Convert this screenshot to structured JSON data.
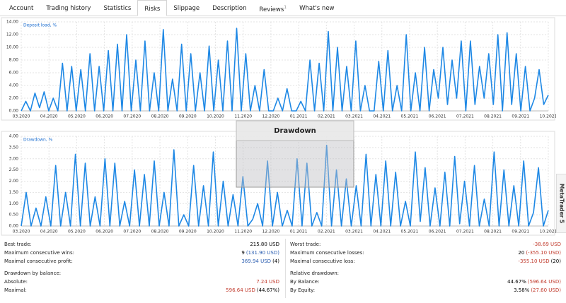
{
  "tabs": [
    "Account",
    "Trading history",
    "Statistics",
    "Risks",
    "Slippage",
    "Description",
    "Reviews",
    "What's new"
  ],
  "reviews_count": "1",
  "charts": [
    {
      "type": "line",
      "label": "Deposit load, %",
      "color": "#1e88e5",
      "ylim": [
        0,
        14
      ],
      "yticks": [
        {
          "value": 0,
          "label": "0.00"
        },
        {
          "value": 2,
          "label": "2.00"
        },
        {
          "value": 4,
          "label": "4.00"
        },
        {
          "value": 6,
          "label": "6.00"
        },
        {
          "value": 8,
          "label": "8.00"
        },
        {
          "value": 10,
          "label": "10.00"
        },
        {
          "value": 12,
          "label": "12.00"
        },
        {
          "value": 14,
          "label": "14.00"
        }
      ],
      "categories": [
        "03.2020",
        "04.2020",
        "05.2020",
        "06.2020",
        "07.2020",
        "08.2020",
        "09.2020",
        "10.2020",
        "11.2020",
        "12.2020",
        "01.2021",
        "02.2021",
        "03.2021",
        "04.2021",
        "05.2021",
        "06.2021",
        "07.2021",
        "08.2021",
        "09.2021",
        "10.2021"
      ],
      "grid": true,
      "values": [
        0,
        1.5,
        0,
        2.8,
        0.5,
        3,
        0,
        2,
        0,
        7.5,
        0,
        7,
        0,
        6.5,
        0,
        9,
        0,
        7,
        0,
        9.5,
        0,
        10.5,
        0,
        12,
        0,
        8,
        0,
        11,
        0,
        6,
        0,
        12.8,
        0,
        5,
        0,
        10.5,
        0,
        9,
        0,
        6,
        0,
        10.2,
        0,
        8,
        0,
        11,
        0,
        13,
        0,
        9,
        0,
        4,
        0,
        6.5,
        0,
        0,
        2,
        0,
        3.5,
        0,
        0,
        1.5,
        0,
        8,
        0,
        7.5,
        0,
        12.5,
        0,
        10,
        0,
        7,
        0,
        11,
        0,
        4,
        0,
        0,
        7.8,
        0,
        9.5,
        0,
        4,
        0,
        12,
        0,
        6,
        0,
        10,
        0,
        6.5,
        2,
        10,
        1,
        8,
        2,
        11,
        0,
        11,
        1,
        7,
        2,
        9,
        1,
        12,
        0,
        12.3,
        1,
        9,
        0,
        7,
        0,
        2,
        6.5,
        1,
        2.5
      ]
    },
    {
      "type": "line",
      "label": "Drawdown, %",
      "color": "#1e88e5",
      "ylim": [
        0,
        4
      ],
      "yticks": [
        {
          "value": 0,
          "label": "0.00"
        },
        {
          "value": 0.5,
          "label": "0.50"
        },
        {
          "value": 1,
          "label": "1.00"
        },
        {
          "value": 1.5,
          "label": "1.50"
        },
        {
          "value": 2,
          "label": "2.00"
        },
        {
          "value": 2.5,
          "label": "2.50"
        },
        {
          "value": 3,
          "label": "3.00"
        },
        {
          "value": 3.5,
          "label": "3.50"
        },
        {
          "value": 4,
          "label": "4.00"
        }
      ],
      "categories": [
        "03.2020",
        "04.2020",
        "05.2020",
        "06.2020",
        "07.2020",
        "08.2020",
        "09.2020",
        "10.2020",
        "11.2020",
        "12.2020",
        "01.2021",
        "02.2021",
        "03.2021",
        "04.2021",
        "05.2021",
        "06.2021",
        "07.2021",
        "08.2021",
        "09.2021",
        "10.2021"
      ],
      "grid": true,
      "values": [
        0,
        1.5,
        0,
        0.8,
        0,
        1.3,
        0,
        2.7,
        0,
        1.5,
        0,
        3.2,
        0,
        2.8,
        0,
        1.3,
        0,
        3.0,
        0,
        2.8,
        0,
        1.1,
        0,
        2.5,
        0,
        2.3,
        0,
        2.9,
        0,
        1.5,
        0,
        3.4,
        0,
        0.5,
        0,
        2.7,
        0,
        1.8,
        0,
        3.3,
        0,
        2.0,
        0,
        1.4,
        0,
        2.2,
        0,
        0.3,
        1.0,
        0,
        2.9,
        0,
        1.5,
        0,
        0.7,
        0,
        3.0,
        0,
        2.8,
        0,
        0.6,
        0,
        3.6,
        0,
        2.5,
        0,
        2.1,
        0,
        1.8,
        0,
        3.2,
        0,
        2.3,
        0,
        2.9,
        0,
        2.4,
        0,
        1.1,
        0,
        3.3,
        0.2,
        2.6,
        0,
        1.7,
        0,
        2.4,
        0,
        3.1,
        0.1,
        2.0,
        0,
        2.7,
        0,
        1.2,
        0,
        3.3,
        0,
        2.5,
        0,
        1.8,
        0,
        2.9,
        0,
        0.6,
        2.6,
        0,
        0.7
      ]
    }
  ],
  "overlay": {
    "title": "Drawdown"
  },
  "side_tab": "MetaTrader 5",
  "stats": {
    "left": [
      {
        "label": "Best trade:",
        "parts": [
          {
            "text": "215.80 USD",
            "color": "#000"
          }
        ]
      },
      {
        "label": "Maximum consecutive wins:",
        "parts": [
          {
            "text": "9",
            "color": "#000"
          },
          {
            "text": "(131.90 USD)",
            "color": "#2a5db0"
          }
        ]
      },
      {
        "label": "Maximal consecutive profit:",
        "parts": [
          {
            "text": "369.94 USD",
            "color": "#2a5db0"
          },
          {
            "text": "(4)",
            "color": "#000"
          }
        ]
      },
      {
        "heading": "Drawdown by balance:"
      },
      {
        "label": "Absolute:",
        "parts": [
          {
            "text": "7.24 USD",
            "color": "#c0392b"
          }
        ]
      },
      {
        "label": "Maximal:",
        "parts": [
          {
            "text": "596.64 USD",
            "color": "#c0392b"
          },
          {
            "text": "(44.67%)",
            "color": "#000"
          }
        ]
      }
    ],
    "right": [
      {
        "label": "Worst trade:",
        "parts": [
          {
            "text": "-38.69 USD",
            "color": "#c0392b"
          }
        ]
      },
      {
        "label": "Maximum consecutive losses:",
        "parts": [
          {
            "text": "20",
            "color": "#000"
          },
          {
            "text": "(-355.10 USD)",
            "color": "#c0392b"
          }
        ]
      },
      {
        "label": "Maximal consecutive loss:",
        "parts": [
          {
            "text": "-355.10 USD",
            "color": "#c0392b"
          },
          {
            "text": "(20)",
            "color": "#000"
          }
        ]
      },
      {
        "heading": "Relative drawdown:"
      },
      {
        "label": "By Balance:",
        "parts": [
          {
            "text": "44.67%",
            "color": "#000"
          },
          {
            "text": "(596.64 USD)",
            "color": "#c0392b"
          }
        ]
      },
      {
        "label": "By Equity:",
        "parts": [
          {
            "text": "3.58%",
            "color": "#000"
          },
          {
            "text": "(27.60 USD)",
            "color": "#c0392b"
          }
        ]
      }
    ]
  }
}
